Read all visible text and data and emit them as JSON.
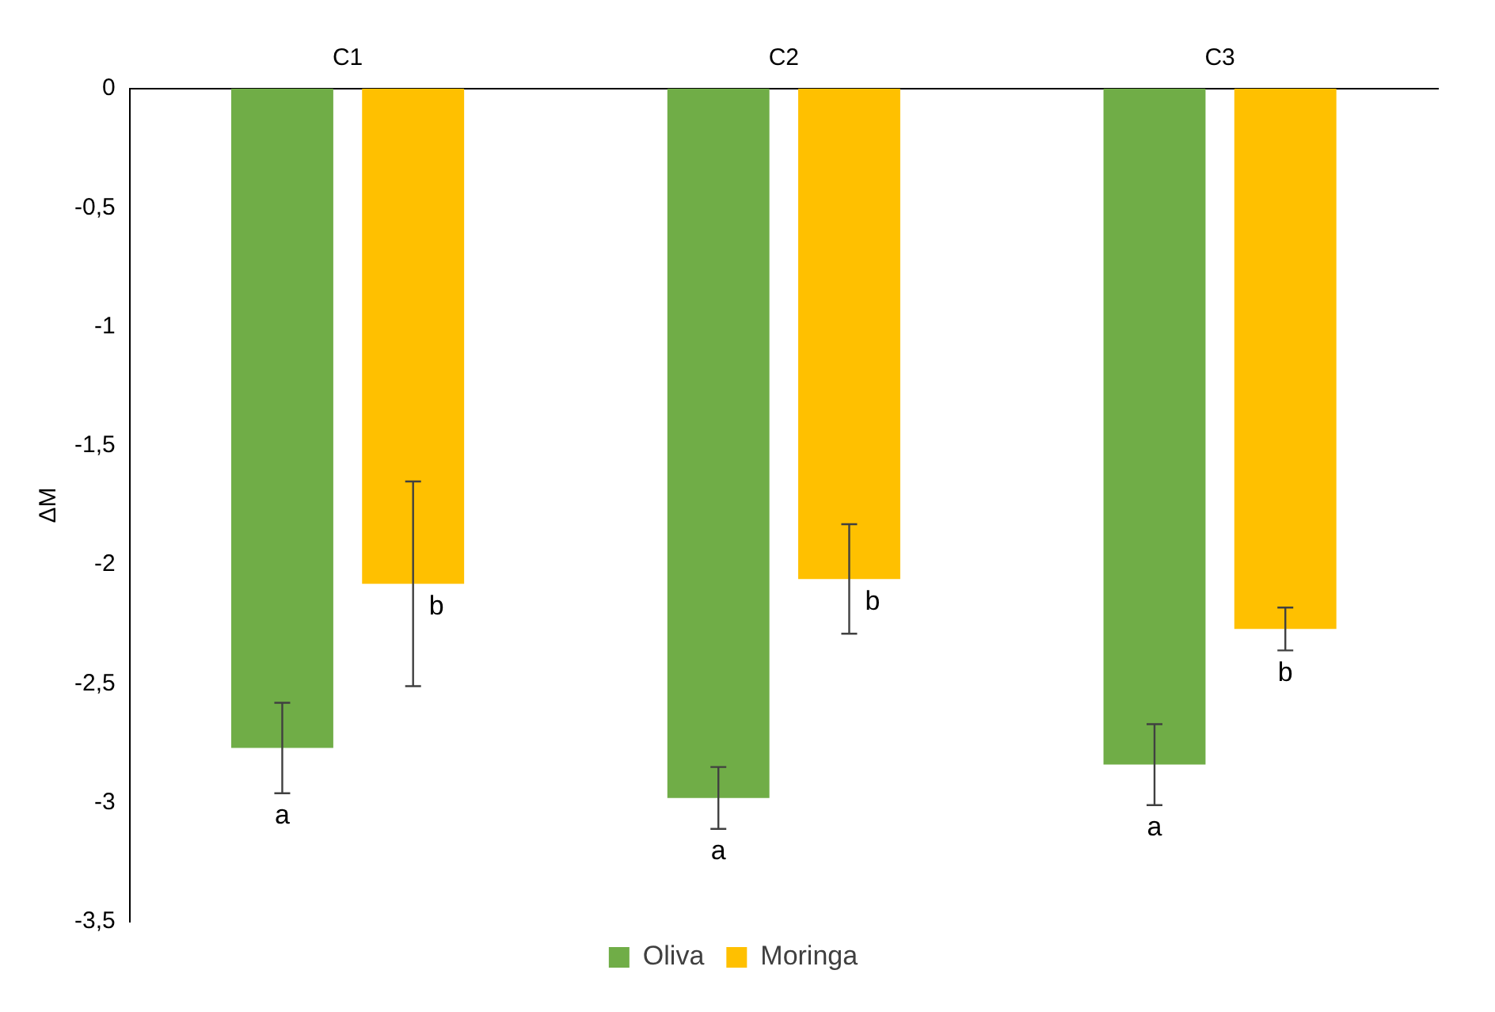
{
  "chart_data": {
    "type": "bar",
    "ylabel": "ΔM",
    "categories": [
      "C1",
      "C2",
      "C3"
    ],
    "series": [
      {
        "name": "Oliva",
        "color": "#70ad47",
        "values": [
          -2.77,
          -2.98,
          -2.84
        ],
        "errors": [
          0.19,
          0.13,
          0.17
        ],
        "value_labels": [
          "a",
          "a",
          "a"
        ]
      },
      {
        "name": "Moringa",
        "color": "#ffc000",
        "values": [
          -2.08,
          -2.06,
          -2.27
        ],
        "errors": [
          0.43,
          0.23,
          0.09
        ],
        "value_labels": [
          "b",
          "b",
          "b"
        ]
      }
    ],
    "ylim": [
      -3.5,
      0
    ],
    "yticks": [
      0,
      {
        "value": -0.5,
        "label": "-0,5"
      },
      -1,
      {
        "value": -1.5,
        "label": "-1,5"
      },
      -2,
      {
        "value": -2.5,
        "label": "-2,5"
      },
      -3,
      {
        "value": -3.5,
        "label": "-3,5"
      }
    ],
    "grid": false,
    "legend": "bottom"
  }
}
